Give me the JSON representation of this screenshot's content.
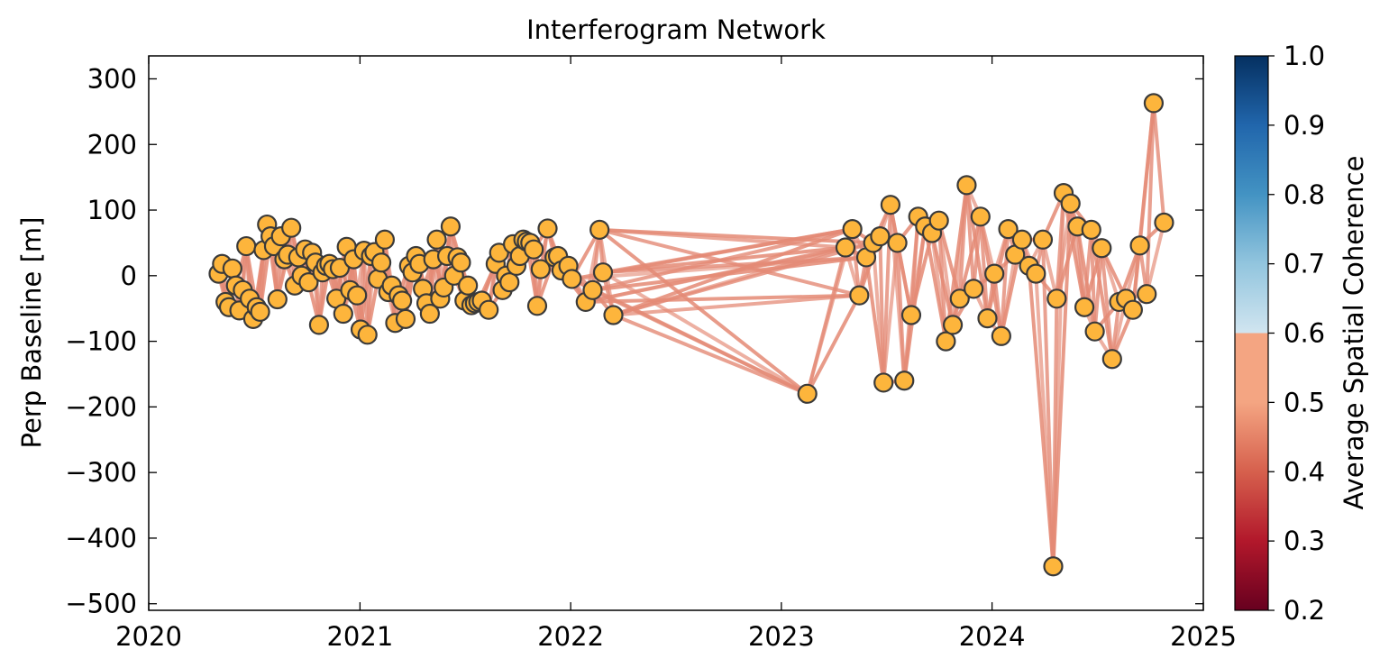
{
  "chart_data": {
    "type": "scatter",
    "title": "Interferogram Network",
    "xlabel": "",
    "ylabel": "Perp Baseline [m]",
    "x_axis": {
      "type": "date",
      "min": "2020-01-01",
      "max": "2025-01-01",
      "ticks": [
        "2020",
        "2021",
        "2022",
        "2023",
        "2024",
        "2025"
      ]
    },
    "y_axis": {
      "min": -510,
      "max": 335,
      "ticks": [
        300,
        200,
        100,
        0,
        -100,
        -200,
        -300,
        -400,
        -500
      ],
      "tick_labels": [
        "300",
        "200",
        "100",
        "0",
        "−100",
        "−200",
        "−300",
        "−400",
        "−500"
      ]
    },
    "grid": false,
    "colorbar": {
      "label": "Average Spatial Coherence",
      "min": 0.2,
      "max": 1.0,
      "ticks": [
        "1.0",
        "0.9",
        "0.8",
        "0.7",
        "0.6",
        "0.5",
        "0.4",
        "0.3",
        "0.2"
      ],
      "colormap": "RdBu",
      "clip_above": 0.7
    },
    "colors": {
      "node_fill": "#fdb53c",
      "node_edge": "#3a3a3a",
      "edge_color": "#e48a76"
    },
    "acquisitions": [
      {
        "date": "2020-05-01",
        "bperp": 3
      },
      {
        "date": "2020-05-07",
        "bperp": 18
      },
      {
        "date": "2020-05-13",
        "bperp": -40
      },
      {
        "date": "2020-05-19",
        "bperp": -48
      },
      {
        "date": "2020-05-25",
        "bperp": 11
      },
      {
        "date": "2020-05-31",
        "bperp": -15
      },
      {
        "date": "2020-06-06",
        "bperp": -53
      },
      {
        "date": "2020-06-12",
        "bperp": -22
      },
      {
        "date": "2020-06-18",
        "bperp": 45
      },
      {
        "date": "2020-06-24",
        "bperp": -35
      },
      {
        "date": "2020-06-30",
        "bperp": -66
      },
      {
        "date": "2020-07-06",
        "bperp": -48
      },
      {
        "date": "2020-07-12",
        "bperp": -55
      },
      {
        "date": "2020-07-18",
        "bperp": 39
      },
      {
        "date": "2020-07-24",
        "bperp": 78
      },
      {
        "date": "2020-07-30",
        "bperp": 60
      },
      {
        "date": "2020-08-05",
        "bperp": 45
      },
      {
        "date": "2020-08-11",
        "bperp": -36
      },
      {
        "date": "2020-08-17",
        "bperp": 60
      },
      {
        "date": "2020-08-23",
        "bperp": 25
      },
      {
        "date": "2020-08-29",
        "bperp": 32
      },
      {
        "date": "2020-09-04",
        "bperp": 73
      },
      {
        "date": "2020-09-10",
        "bperp": -15
      },
      {
        "date": "2020-09-16",
        "bperp": 28
      },
      {
        "date": "2020-09-22",
        "bperp": 0
      },
      {
        "date": "2020-09-28",
        "bperp": 40
      },
      {
        "date": "2020-10-04",
        "bperp": -10
      },
      {
        "date": "2020-10-10",
        "bperp": 35
      },
      {
        "date": "2020-10-16",
        "bperp": 20
      },
      {
        "date": "2020-10-22",
        "bperp": -75
      },
      {
        "date": "2020-10-28",
        "bperp": 5
      },
      {
        "date": "2020-11-03",
        "bperp": 15
      },
      {
        "date": "2020-11-09",
        "bperp": 18
      },
      {
        "date": "2020-11-15",
        "bperp": 10
      },
      {
        "date": "2020-11-21",
        "bperp": -35
      },
      {
        "date": "2020-11-27",
        "bperp": 12
      },
      {
        "date": "2020-12-03",
        "bperp": -58
      },
      {
        "date": "2020-12-09",
        "bperp": 44
      },
      {
        "date": "2020-12-15",
        "bperp": -22
      },
      {
        "date": "2020-12-21",
        "bperp": 25
      },
      {
        "date": "2020-12-27",
        "bperp": -30
      },
      {
        "date": "2021-01-02",
        "bperp": -82
      },
      {
        "date": "2021-01-08",
        "bperp": 38
      },
      {
        "date": "2021-01-14",
        "bperp": -90
      },
      {
        "date": "2021-01-20",
        "bperp": 30
      },
      {
        "date": "2021-01-26",
        "bperp": 36
      },
      {
        "date": "2021-02-01",
        "bperp": -5
      },
      {
        "date": "2021-02-07",
        "bperp": 20
      },
      {
        "date": "2021-02-13",
        "bperp": 55
      },
      {
        "date": "2021-02-19",
        "bperp": -25
      },
      {
        "date": "2021-02-25",
        "bperp": -15
      },
      {
        "date": "2021-03-03",
        "bperp": -72
      },
      {
        "date": "2021-03-09",
        "bperp": -30
      },
      {
        "date": "2021-03-15",
        "bperp": -38
      },
      {
        "date": "2021-03-21",
        "bperp": -66
      },
      {
        "date": "2021-03-27",
        "bperp": 15
      },
      {
        "date": "2021-04-02",
        "bperp": 5
      },
      {
        "date": "2021-04-08",
        "bperp": 30
      },
      {
        "date": "2021-04-14",
        "bperp": 18
      },
      {
        "date": "2021-04-20",
        "bperp": -20
      },
      {
        "date": "2021-04-26",
        "bperp": -42
      },
      {
        "date": "2021-05-02",
        "bperp": -58
      },
      {
        "date": "2021-05-08",
        "bperp": 25
      },
      {
        "date": "2021-05-14",
        "bperp": 55
      },
      {
        "date": "2021-05-20",
        "bperp": -35
      },
      {
        "date": "2021-05-26",
        "bperp": -18
      },
      {
        "date": "2021-06-01",
        "bperp": 30
      },
      {
        "date": "2021-06-07",
        "bperp": 75
      },
      {
        "date": "2021-06-13",
        "bperp": 0
      },
      {
        "date": "2021-06-19",
        "bperp": 28
      },
      {
        "date": "2021-06-25",
        "bperp": 20
      },
      {
        "date": "2021-07-01",
        "bperp": -38
      },
      {
        "date": "2021-07-07",
        "bperp": -15
      },
      {
        "date": "2021-07-13",
        "bperp": -45
      },
      {
        "date": "2021-07-19",
        "bperp": -42
      },
      {
        "date": "2021-07-25",
        "bperp": -40
      },
      {
        "date": "2021-07-31",
        "bperp": -38
      },
      {
        "date": "2021-08-12",
        "bperp": -52
      },
      {
        "date": "2021-08-24",
        "bperp": 18
      },
      {
        "date": "2021-08-30",
        "bperp": 35
      },
      {
        "date": "2021-09-05",
        "bperp": -22
      },
      {
        "date": "2021-09-11",
        "bperp": 0
      },
      {
        "date": "2021-09-17",
        "bperp": -10
      },
      {
        "date": "2021-09-23",
        "bperp": 48
      },
      {
        "date": "2021-09-29",
        "bperp": 15
      },
      {
        "date": "2021-10-05",
        "bperp": 30
      },
      {
        "date": "2021-10-11",
        "bperp": 55
      },
      {
        "date": "2021-10-17",
        "bperp": 52
      },
      {
        "date": "2021-10-23",
        "bperp": 50
      },
      {
        "date": "2021-10-29",
        "bperp": 40
      },
      {
        "date": "2021-11-04",
        "bperp": -46
      },
      {
        "date": "2021-11-10",
        "bperp": 10
      },
      {
        "date": "2021-11-22",
        "bperp": 72
      },
      {
        "date": "2021-12-04",
        "bperp": 28
      },
      {
        "date": "2021-12-10",
        "bperp": 30
      },
      {
        "date": "2021-12-16",
        "bperp": 8
      },
      {
        "date": "2021-12-28",
        "bperp": 15
      },
      {
        "date": "2022-01-03",
        "bperp": -5
      },
      {
        "date": "2022-01-27",
        "bperp": -40
      },
      {
        "date": "2022-02-08",
        "bperp": -22
      },
      {
        "date": "2022-02-20",
        "bperp": 70
      },
      {
        "date": "2022-02-26",
        "bperp": 5
      },
      {
        "date": "2022-03-16",
        "bperp": -60
      },
      {
        "date": "2023-02-15",
        "bperp": -180
      },
      {
        "date": "2023-04-22",
        "bperp": 43
      },
      {
        "date": "2023-05-04",
        "bperp": 71
      },
      {
        "date": "2023-05-16",
        "bperp": -30
      },
      {
        "date": "2023-05-28",
        "bperp": 28
      },
      {
        "date": "2023-06-09",
        "bperp": 50
      },
      {
        "date": "2023-06-21",
        "bperp": 60
      },
      {
        "date": "2023-06-27",
        "bperp": -163
      },
      {
        "date": "2023-07-09",
        "bperp": 108
      },
      {
        "date": "2023-07-21",
        "bperp": 50
      },
      {
        "date": "2023-08-02",
        "bperp": -160
      },
      {
        "date": "2023-08-14",
        "bperp": -60
      },
      {
        "date": "2023-08-26",
        "bperp": 90
      },
      {
        "date": "2023-09-07",
        "bperp": 75
      },
      {
        "date": "2023-09-19",
        "bperp": 65
      },
      {
        "date": "2023-10-01",
        "bperp": 84
      },
      {
        "date": "2023-10-13",
        "bperp": -100
      },
      {
        "date": "2023-10-25",
        "bperp": -75
      },
      {
        "date": "2023-11-06",
        "bperp": -35
      },
      {
        "date": "2023-11-18",
        "bperp": 138
      },
      {
        "date": "2023-11-30",
        "bperp": -20
      },
      {
        "date": "2023-12-12",
        "bperp": 90
      },
      {
        "date": "2023-12-24",
        "bperp": -65
      },
      {
        "date": "2024-01-05",
        "bperp": 3
      },
      {
        "date": "2024-01-17",
        "bperp": -92
      },
      {
        "date": "2024-01-29",
        "bperp": 71
      },
      {
        "date": "2024-02-10",
        "bperp": 32
      },
      {
        "date": "2024-02-22",
        "bperp": 55
      },
      {
        "date": "2024-03-05",
        "bperp": 15
      },
      {
        "date": "2024-03-17",
        "bperp": 3
      },
      {
        "date": "2024-03-29",
        "bperp": 55
      },
      {
        "date": "2024-04-16",
        "bperp": -443
      },
      {
        "date": "2024-04-22",
        "bperp": -35
      },
      {
        "date": "2024-05-04",
        "bperp": 126
      },
      {
        "date": "2024-05-16",
        "bperp": 110
      },
      {
        "date": "2024-05-28",
        "bperp": 75
      },
      {
        "date": "2024-06-09",
        "bperp": -48
      },
      {
        "date": "2024-06-21",
        "bperp": 70
      },
      {
        "date": "2024-06-27",
        "bperp": -85
      },
      {
        "date": "2024-07-09",
        "bperp": 42
      },
      {
        "date": "2024-07-27",
        "bperp": -127
      },
      {
        "date": "2024-08-08",
        "bperp": -40
      },
      {
        "date": "2024-08-20",
        "bperp": -35
      },
      {
        "date": "2024-09-01",
        "bperp": -52
      },
      {
        "date": "2024-09-13",
        "bperp": 46
      },
      {
        "date": "2024-09-25",
        "bperp": -28
      },
      {
        "date": "2024-10-07",
        "bperp": 263
      },
      {
        "date": "2024-10-25",
        "bperp": 81
      }
    ]
  }
}
